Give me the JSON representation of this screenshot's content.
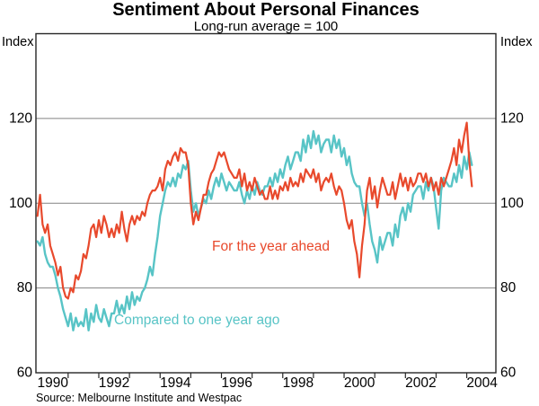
{
  "chart": {
    "title": "Sentiment About Personal Finances",
    "subtitle": "Long-run average = 100",
    "y_unit_left": "Index",
    "y_unit_right": "Index",
    "source": "Source: Melbourne Institute and Westpac"
  },
  "colors": {
    "year_ahead": "#e8492c",
    "one_year_ago": "#58c4c6",
    "gridline": "#828282",
    "axis": "#262626",
    "text": "#000000",
    "background": "#ffffff"
  },
  "chart_data": {
    "type": "line",
    "title": "Sentiment About Personal Finances",
    "subtitle": "Long-run average = 100",
    "ylabel": "Index",
    "ylim": [
      60,
      140
    ],
    "xlim": [
      1989.45,
      2004.45
    ],
    "grid": "horizontal",
    "y_gridlines": [
      80,
      100,
      120
    ],
    "y_tick_labels": [
      60,
      80,
      100,
      120
    ],
    "x_tick_labels": [
      1990,
      1992,
      1994,
      1996,
      1998,
      2000,
      2002,
      2004
    ],
    "x_minor_ticks": [
      1990.5,
      1991.5,
      1992.5,
      1993.5,
      1994.5,
      1995.5,
      1996.5,
      1997.5,
      1998.5,
      1999.5,
      2000.5,
      2001.5,
      2002.5,
      2003.5
    ],
    "x_start": 1989.5,
    "x_step": 0.0833333,
    "legend_position": "inline-annotations",
    "annotations": [
      {
        "id": "year_ahead",
        "text": "For the year ahead",
        "color": "#e8492c"
      },
      {
        "id": "one_year_ago",
        "text": "Compared to one year ago",
        "color": "#58c4c6"
      }
    ],
    "series": [
      {
        "name": "Compared to one year ago",
        "color": "#58c4c6",
        "values": [
          91,
          90,
          92,
          88,
          86,
          85,
          85,
          83,
          80,
          78,
          75,
          73,
          71,
          74,
          70,
          73,
          71,
          72,
          71,
          75,
          70,
          74,
          72,
          76,
          73,
          72,
          75,
          73,
          71,
          74,
          74,
          77,
          74,
          76,
          74,
          78,
          75,
          79,
          76,
          78,
          77,
          79,
          80,
          82,
          85,
          83,
          88,
          92,
          97,
          100,
          103,
          105,
          104,
          106,
          104,
          107,
          106,
          109,
          108,
          110,
          103,
          98,
          100,
          97,
          99,
          101,
          100,
          103,
          101,
          104,
          106,
          104,
          107,
          105,
          103,
          105,
          104,
          103,
          103,
          105,
          102,
          100,
          103,
          101,
          104,
          102,
          105,
          103,
          102,
          104,
          104,
          106,
          104,
          107,
          105,
          108,
          106,
          109,
          111,
          108,
          110,
          112,
          112,
          110,
          115,
          112,
          116,
          113,
          117,
          114,
          116,
          112,
          114,
          115,
          115,
          112,
          116,
          113,
          115,
          111,
          113,
          109,
          111,
          107,
          105,
          104,
          104,
          100,
          97,
          100,
          95,
          91,
          89,
          86,
          92,
          89,
          91,
          93,
          93,
          90,
          95,
          92,
          97,
          99,
          96,
          100,
          98,
          102,
          103,
          104,
          104,
          101,
          105,
          103,
          106,
          104,
          99,
          94,
          103,
          106,
          105,
          104,
          104,
          107,
          105,
          109,
          106,
          111,
          108,
          112,
          109
        ]
      },
      {
        "name": "For the year ahead",
        "color": "#e8492c",
        "values": [
          97,
          102,
          95,
          93,
          95,
          90,
          88,
          86,
          83,
          85,
          80,
          78,
          77.5,
          80,
          79,
          83,
          82,
          84,
          88,
          87,
          90,
          94,
          95,
          92,
          96,
          93,
          97,
          95,
          92,
          94,
          92,
          95,
          93,
          98,
          94,
          91,
          95,
          97,
          95,
          97,
          96,
          98,
          97,
          100,
          102,
          103,
          103,
          104,
          106,
          103,
          108,
          110,
          109,
          111,
          112,
          110,
          113,
          112,
          112,
          109,
          100,
          95,
          98,
          96,
          99,
          102,
          102,
          105,
          107,
          108,
          110,
          112,
          111,
          112,
          110,
          108,
          107,
          106,
          106,
          108,
          104,
          107,
          103,
          105,
          103,
          106,
          104,
          102,
          103,
          101,
          101,
          104,
          101,
          103,
          101,
          104,
          103,
          105,
          103,
          106,
          104,
          105,
          104,
          107,
          105,
          108,
          107,
          106,
          108,
          105,
          107,
          103,
          105,
          106,
          105,
          107,
          104,
          102,
          104,
          103,
          100,
          96,
          94,
          96,
          91,
          88,
          82.5,
          90,
          95,
          103,
          106,
          101,
          104,
          99,
          103,
          106,
          104,
          102,
          102,
          105,
          101,
          104,
          107,
          104,
          106,
          103,
          106,
          104,
          105,
          107,
          107,
          105,
          107,
          104,
          106,
          103,
          105,
          102,
          106,
          104,
          106,
          108,
          110,
          113,
          109,
          115,
          112,
          116,
          119,
          110,
          104
        ]
      }
    ]
  }
}
